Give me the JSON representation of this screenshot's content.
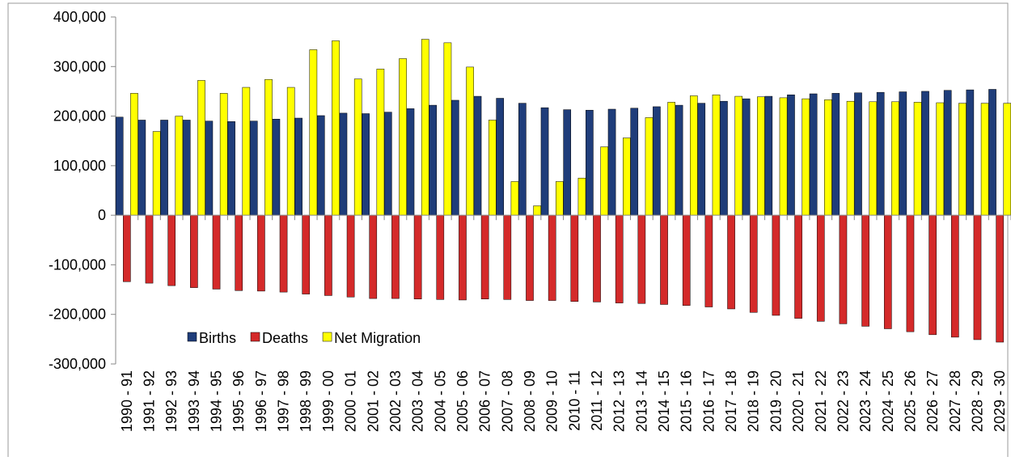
{
  "chart_data": {
    "type": "bar",
    "categories": [
      "1990 - 91",
      "1991 - 92",
      "1992 - 93",
      "1993 - 94",
      "1994 - 95",
      "1995 - 96",
      "1996 - 97",
      "1997 - 98",
      "1998 - 99",
      "1999 - 00",
      "2000 - 01",
      "2001 - 02",
      "2002 - 03",
      "2003 - 04",
      "2004 - 05",
      "2005 - 06",
      "2006 - 07",
      "2007 - 08",
      "2008 - 09",
      "2009 - 10",
      "2010 - 11",
      "2011 - 12",
      "2012 - 13",
      "2013 - 14",
      "2014 - 15",
      "2015 - 16",
      "2016 - 17",
      "2017 - 18",
      "2018 - 19",
      "2019 - 20",
      "2020 - 21",
      "2021 - 22",
      "2022 - 23",
      "2023 - 24",
      "2024 - 25",
      "2025 - 26",
      "2026 - 27",
      "2027 - 28",
      "2028 - 29",
      "2029 - 30"
    ],
    "series": [
      {
        "name": "Births",
        "color": "#1f3d7a",
        "values": [
          198000,
          192000,
          192000,
          192000,
          190000,
          189000,
          190000,
          194000,
          196000,
          201000,
          206000,
          205000,
          208000,
          215000,
          222000,
          232000,
          240000,
          236000,
          226000,
          217000,
          213000,
          212000,
          214000,
          216000,
          219000,
          222000,
          226000,
          230000,
          235000,
          240000,
          243000,
          245000,
          246000,
          247000,
          248000,
          249000,
          250000,
          252000,
          253000,
          254000
        ]
      },
      {
        "name": "Deaths",
        "color": "#d42a2a",
        "values": [
          -134000,
          -137000,
          -142000,
          -146000,
          -149000,
          -152000,
          -153000,
          -155000,
          -159000,
          -162000,
          -165000,
          -168000,
          -168000,
          -169000,
          -170000,
          -171000,
          -169000,
          -170000,
          -172000,
          -172000,
          -174000,
          -175000,
          -177000,
          -178000,
          -180000,
          -182000,
          -185000,
          -189000,
          -196000,
          -202000,
          -208000,
          -214000,
          -219000,
          -224000,
          -229000,
          -235000,
          -241000,
          -246000,
          -251000,
          -256000
        ]
      },
      {
        "name": "Net Migration",
        "color": "#ffff00",
        "values": [
          246000,
          169000,
          200000,
          272000,
          246000,
          258000,
          274000,
          258000,
          334000,
          352000,
          275000,
          295000,
          316000,
          355000,
          348000,
          299000,
          192000,
          68000,
          19000,
          68000,
          75000,
          138000,
          156000,
          197000,
          228000,
          241000,
          243000,
          240000,
          239000,
          237000,
          235000,
          233000,
          230000,
          229000,
          229000,
          228000,
          227000,
          226000,
          226000,
          226000
        ]
      }
    ],
    "ylim": [
      -300000,
      400000
    ],
    "yticks": [
      {
        "value": -300000,
        "label": "-300,000"
      },
      {
        "value": -200000,
        "label": "-200,000"
      },
      {
        "value": -100000,
        "label": "-100,000"
      },
      0,
      {
        "value": 100000,
        "label": "100,000"
      },
      {
        "value": 200000,
        "label": "200,000"
      },
      {
        "value": 300000,
        "label": "300,000"
      },
      {
        "value": 400000,
        "label": "400,000"
      }
    ],
    "grid": false,
    "legend": "lower-left"
  }
}
